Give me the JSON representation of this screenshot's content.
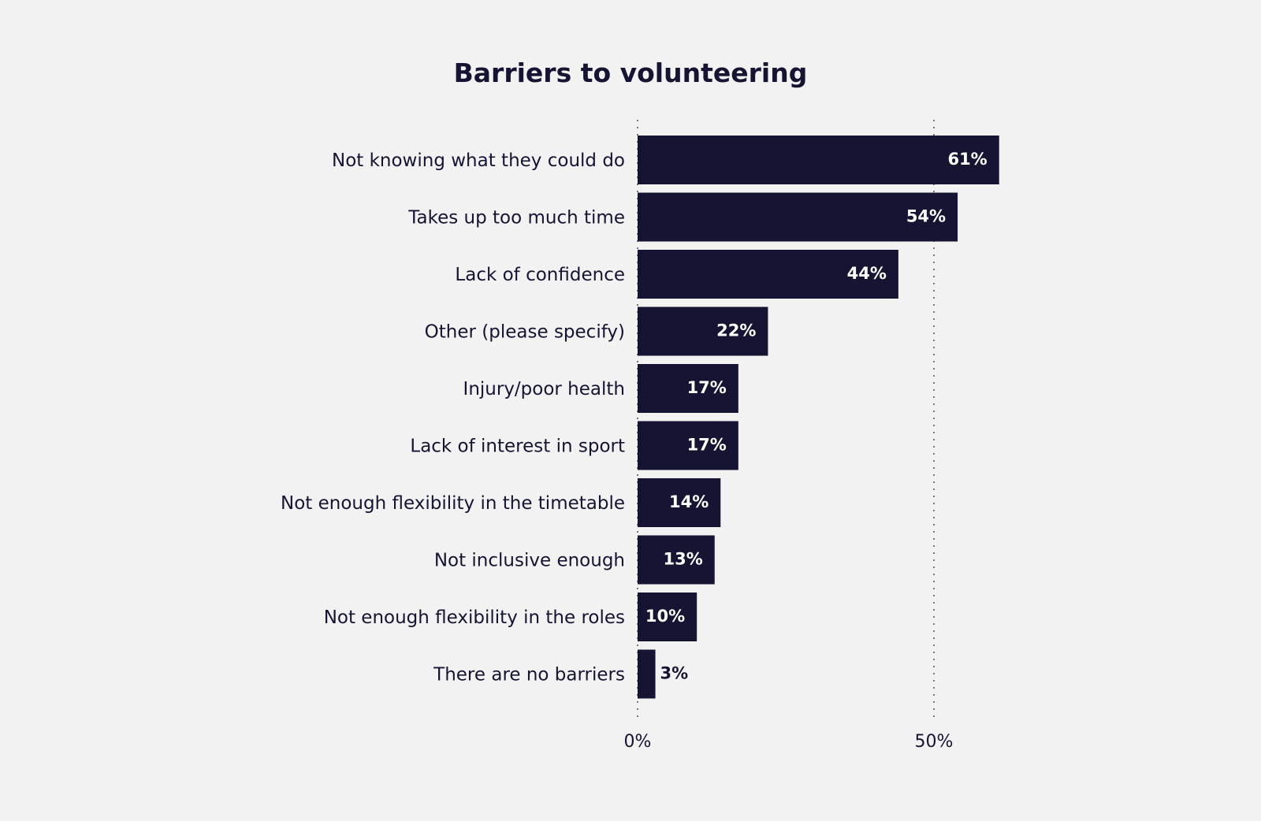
{
  "chart_data": {
    "type": "bar",
    "orientation": "horizontal",
    "title": "Barriers to volunteering",
    "categories": [
      "Not knowing what they could do",
      "Takes up too much time",
      "Lack of confidence",
      "Other (please specify)",
      "Injury/poor health",
      "Lack of interest in sport",
      "Not enough flexibility in the timetable",
      "Not inclusive enough",
      "Not enough flexibility in the roles",
      "There are no barriers"
    ],
    "values": [
      61,
      54,
      44,
      22,
      17,
      17,
      14,
      13,
      10,
      3
    ],
    "data_labels": [
      "61%",
      "54%",
      "44%",
      "22%",
      "17%",
      "17%",
      "14%",
      "13%",
      "10%",
      "3%"
    ],
    "xlim": [
      0,
      100
    ],
    "xticks": [
      0,
      50
    ],
    "xtick_labels": [
      "0%",
      "50%"
    ],
    "grid": "dotted vertical at ticks",
    "colors": {
      "bar": "#161433",
      "background": "#f1f2f1",
      "label_inside": "#ffffff",
      "grid": "#777777"
    }
  }
}
